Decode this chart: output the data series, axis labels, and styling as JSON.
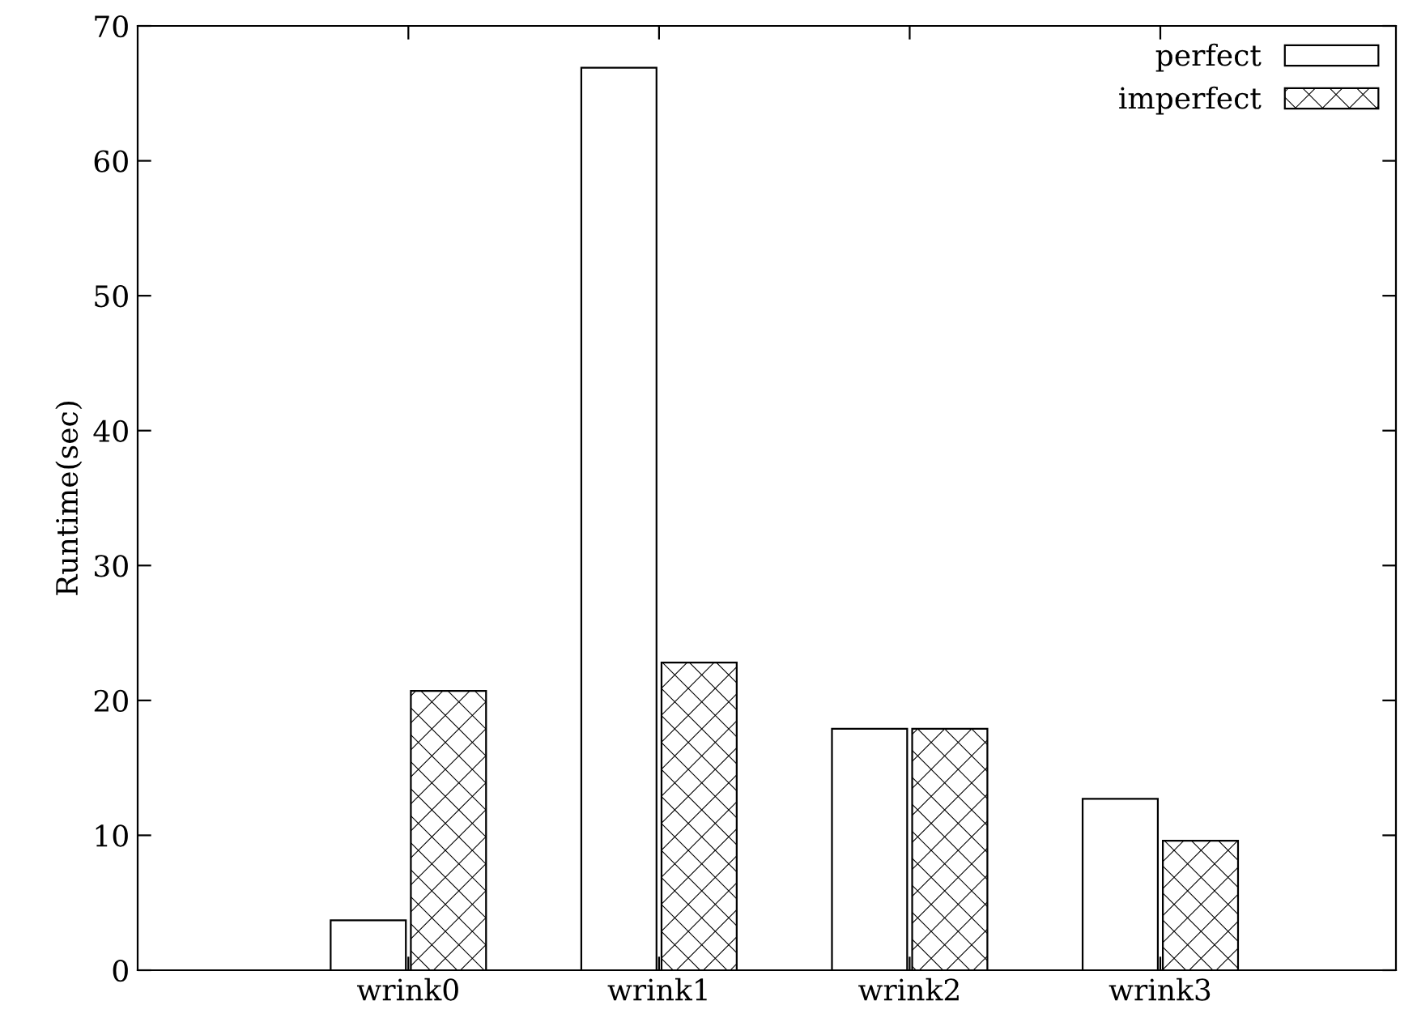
{
  "chart_data": {
    "type": "bar",
    "ylabel": "Runtime(sec)",
    "categories": [
      "wrink0",
      "wrink1",
      "wrink2",
      "wrink3"
    ],
    "series": [
      {
        "name": "perfect",
        "color": "#ffffff",
        "values": [
          3.7,
          66.9,
          17.9,
          12.7
        ]
      },
      {
        "name": "imperfect",
        "color": "#000000",
        "values": [
          20.7,
          22.8,
          17.9,
          9.6
        ]
      }
    ],
    "ylim": [
      0,
      70
    ],
    "yticks": [
      0,
      10,
      20,
      30,
      40,
      50,
      60,
      70
    ],
    "grid": false,
    "legend": "top right"
  }
}
